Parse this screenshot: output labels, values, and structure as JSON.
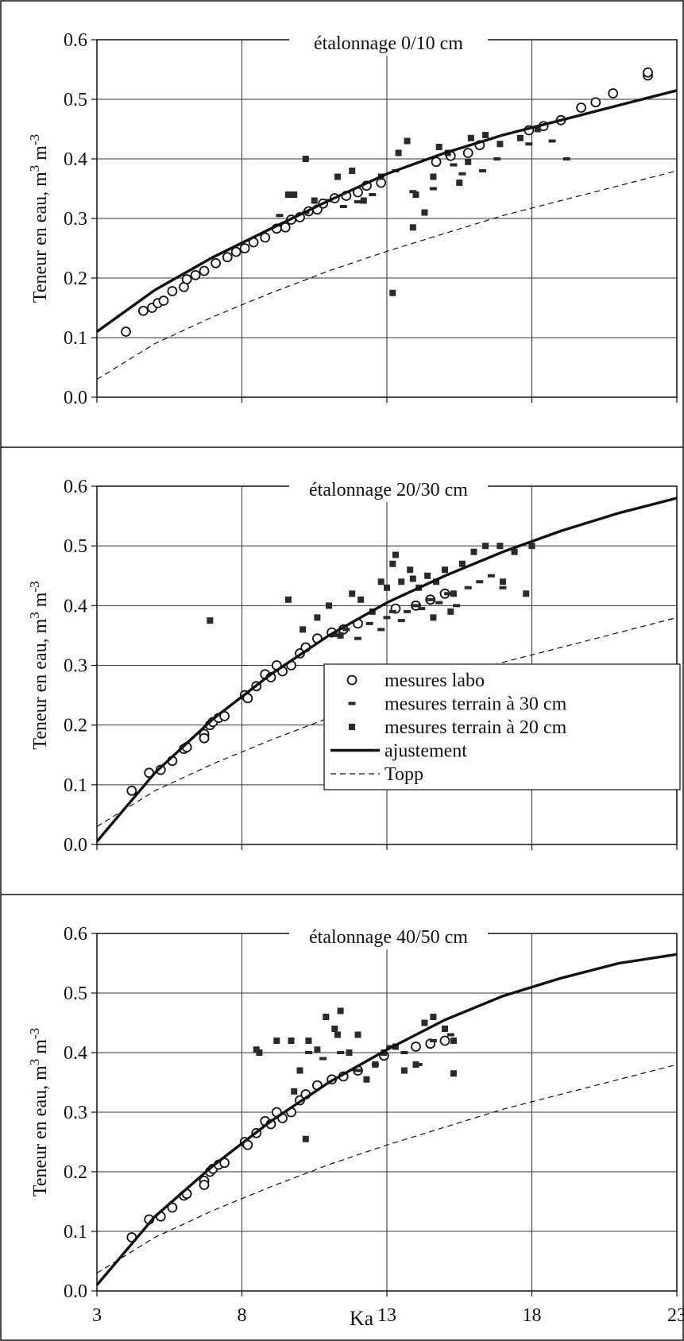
{
  "figure": {
    "xlabel": "Ka",
    "ylabel_main": "Teneur en eau, m",
    "ylabel_sup1": "3",
    "ylabel_mid": " m",
    "ylabel_sup2": "-3",
    "x_ticks": [
      "3",
      "8",
      "13",
      "18",
      "23"
    ],
    "y_ticks": [
      "0.0",
      "0.1",
      "0.2",
      "0.3",
      "0.4",
      "0.5",
      "0.6"
    ],
    "colors": {
      "ink": "#111111",
      "grid": "#333333",
      "lab_fill": "#ffffff",
      "field": "#2a2a2a"
    }
  },
  "legend": {
    "placement": "inside-lower-right of middle panel",
    "entries": [
      {
        "label": "mesures labo",
        "marker": "open-circle"
      },
      {
        "label": "mesures terrain à 30 cm",
        "marker": "small-dash"
      },
      {
        "label": "mesures terrain à 20 cm",
        "marker": "filled-square"
      },
      {
        "label": "ajustement",
        "marker": "thick-line"
      },
      {
        "label": "Topp",
        "marker": "dashed-line"
      }
    ]
  },
  "chart_data": [
    {
      "type": "scatter",
      "title": "étalonnage 0/10 cm",
      "xlim": [
        3,
        23
      ],
      "ylim": [
        0,
        0.6
      ],
      "grid": true,
      "series": [
        {
          "name": "mesures labo",
          "marker": "open-circle",
          "x": [
            4.0,
            4.6,
            4.9,
            5.1,
            5.3,
            5.6,
            6.0,
            6.1,
            6.4,
            6.7,
            7.1,
            7.5,
            7.8,
            8.1,
            8.4,
            8.8,
            9.2,
            9.5,
            9.7,
            10.0,
            10.3,
            10.6,
            10.8,
            11.2,
            11.6,
            12.0,
            12.3,
            12.8,
            14.7,
            15.2,
            15.8,
            16.2,
            17.9,
            18.4,
            19.0,
            19.7,
            20.2,
            20.8,
            22.0,
            22.0
          ],
          "y": [
            0.11,
            0.145,
            0.15,
            0.158,
            0.162,
            0.178,
            0.185,
            0.198,
            0.205,
            0.212,
            0.225,
            0.235,
            0.244,
            0.25,
            0.26,
            0.268,
            0.283,
            0.285,
            0.298,
            0.302,
            0.312,
            0.315,
            0.325,
            0.334,
            0.338,
            0.344,
            0.355,
            0.36,
            0.395,
            0.405,
            0.41,
            0.423,
            0.448,
            0.455,
            0.465,
            0.486,
            0.495,
            0.51,
            0.54,
            0.545
          ]
        },
        {
          "name": "mesures terrain à 30 cm",
          "marker": "small-dash",
          "x": [
            9.3,
            10.2,
            11.0,
            11.5,
            12.0,
            12.5,
            13.3,
            13.9,
            14.6,
            15.3,
            15.6,
            16.3,
            16.8,
            17.9,
            18.7,
            19.2
          ],
          "y": [
            0.305,
            0.31,
            0.33,
            0.32,
            0.328,
            0.34,
            0.38,
            0.345,
            0.35,
            0.39,
            0.375,
            0.38,
            0.4,
            0.425,
            0.43,
            0.4
          ]
        },
        {
          "name": "mesures terrain à 20 cm",
          "marker": "filled-square",
          "x": [
            9.6,
            9.8,
            10.2,
            10.5,
            11.3,
            11.8,
            12.2,
            12.8,
            13.4,
            13.7,
            14.0,
            14.3,
            14.8,
            15.1,
            15.5,
            15.9,
            16.4,
            16.9,
            17.6,
            18.2,
            13.2,
            13.9,
            14.6,
            15.8
          ],
          "y": [
            0.34,
            0.34,
            0.4,
            0.33,
            0.37,
            0.38,
            0.33,
            0.37,
            0.41,
            0.43,
            0.34,
            0.31,
            0.42,
            0.41,
            0.36,
            0.435,
            0.44,
            0.425,
            0.435,
            0.45,
            0.175,
            0.285,
            0.37,
            0.395
          ]
        },
        {
          "name": "ajustement",
          "marker": "thick-line",
          "x": [
            3,
            5,
            7,
            9,
            11,
            13,
            15,
            17,
            19,
            21,
            23
          ],
          "y": [
            0.11,
            0.18,
            0.235,
            0.283,
            0.33,
            0.375,
            0.41,
            0.44,
            0.465,
            0.49,
            0.515
          ]
        },
        {
          "name": "Topp",
          "marker": "dashed-line",
          "x": [
            3,
            5,
            7,
            9,
            11,
            13,
            15,
            17,
            19,
            21,
            23
          ],
          "y": [
            0.03,
            0.09,
            0.135,
            0.175,
            0.212,
            0.245,
            0.275,
            0.305,
            0.33,
            0.355,
            0.38
          ]
        }
      ]
    },
    {
      "type": "scatter",
      "title": "étalonnage 20/30 cm",
      "xlim": [
        3,
        23
      ],
      "ylim": [
        0,
        0.6
      ],
      "grid": true,
      "series": [
        {
          "name": "mesures labo",
          "marker": "open-circle",
          "x": [
            4.2,
            4.8,
            5.2,
            5.6,
            6.0,
            6.1,
            6.7,
            6.7,
            6.9,
            7.0,
            7.2,
            7.4,
            8.1,
            8.2,
            8.5,
            8.8,
            9.0,
            9.2,
            9.4,
            9.7,
            10.0,
            10.2,
            10.6,
            11.1,
            11.5,
            12.0,
            13.3,
            14.0,
            14.5,
            15.0
          ],
          "y": [
            0.09,
            0.12,
            0.125,
            0.14,
            0.16,
            0.163,
            0.185,
            0.178,
            0.2,
            0.205,
            0.212,
            0.215,
            0.25,
            0.245,
            0.265,
            0.285,
            0.28,
            0.3,
            0.29,
            0.3,
            0.32,
            0.33,
            0.345,
            0.355,
            0.36,
            0.37,
            0.395,
            0.4,
            0.41,
            0.42
          ]
        },
        {
          "name": "mesures terrain à 30 cm",
          "marker": "small-dash",
          "x": [
            11.2,
            11.6,
            12.0,
            12.4,
            12.8,
            13.0,
            13.2,
            13.5,
            13.7,
            14.0,
            14.2,
            14.5,
            14.8,
            15.1,
            15.4,
            15.8,
            16.2,
            16.6,
            17.0
          ],
          "y": [
            0.35,
            0.36,
            0.345,
            0.37,
            0.36,
            0.38,
            0.39,
            0.375,
            0.39,
            0.4,
            0.395,
            0.41,
            0.405,
            0.42,
            0.4,
            0.43,
            0.44,
            0.45,
            0.43
          ]
        },
        {
          "name": "mesures terrain à 20 cm",
          "marker": "filled-square",
          "x": [
            6.9,
            9.6,
            10.1,
            10.6,
            11.0,
            11.4,
            11.8,
            12.1,
            12.5,
            12.8,
            13.0,
            13.2,
            13.5,
            13.8,
            14.1,
            14.4,
            14.7,
            15.0,
            15.3,
            15.6,
            16.0,
            16.4,
            16.9,
            17.4,
            17.8,
            18.0,
            12.9,
            13.3,
            13.9,
            14.6,
            15.2,
            17.0
          ],
          "y": [
            0.375,
            0.41,
            0.36,
            0.38,
            0.4,
            0.35,
            0.42,
            0.41,
            0.39,
            0.44,
            0.43,
            0.47,
            0.44,
            0.46,
            0.43,
            0.45,
            0.44,
            0.46,
            0.42,
            0.47,
            0.49,
            0.5,
            0.5,
            0.49,
            0.42,
            0.5,
            0.275,
            0.485,
            0.445,
            0.38,
            0.39,
            0.44
          ]
        },
        {
          "name": "ajustement",
          "marker": "thick-line",
          "x": [
            3,
            5,
            7,
            9,
            11,
            13,
            15,
            17,
            19,
            21,
            23
          ],
          "y": [
            0.005,
            0.12,
            0.21,
            0.285,
            0.35,
            0.405,
            0.45,
            0.49,
            0.525,
            0.555,
            0.58
          ]
        },
        {
          "name": "Topp",
          "marker": "dashed-line",
          "x": [
            3,
            5,
            7,
            9,
            11,
            13,
            15,
            17,
            19,
            21,
            23
          ],
          "y": [
            0.03,
            0.09,
            0.135,
            0.175,
            0.212,
            0.245,
            0.275,
            0.305,
            0.33,
            0.355,
            0.38
          ]
        }
      ]
    },
    {
      "type": "scatter",
      "title": "étalonnage 40/50 cm",
      "xlim": [
        3,
        23
      ],
      "ylim": [
        0,
        0.6
      ],
      "grid": true,
      "series": [
        {
          "name": "mesures labo",
          "marker": "open-circle",
          "x": [
            4.2,
            4.8,
            5.2,
            5.6,
            6.0,
            6.1,
            6.7,
            6.7,
            6.9,
            7.0,
            7.2,
            7.4,
            8.1,
            8.2,
            8.5,
            8.8,
            9.0,
            9.2,
            9.4,
            9.7,
            10.0,
            10.2,
            10.6,
            11.1,
            11.5,
            12.0,
            12.9,
            14.0,
            14.5,
            15.0
          ],
          "y": [
            0.09,
            0.12,
            0.125,
            0.14,
            0.16,
            0.163,
            0.185,
            0.178,
            0.2,
            0.205,
            0.212,
            0.215,
            0.25,
            0.245,
            0.265,
            0.285,
            0.28,
            0.3,
            0.29,
            0.3,
            0.32,
            0.33,
            0.345,
            0.355,
            0.36,
            0.37,
            0.395,
            0.41,
            0.415,
            0.42
          ]
        },
        {
          "name": "mesures terrain à 30 cm",
          "marker": "small-dash",
          "x": [
            10.3,
            10.8,
            11.4,
            12.0,
            12.6,
            13.1,
            13.6,
            14.1,
            14.6,
            15.2
          ],
          "y": [
            0.4,
            0.39,
            0.4,
            0.37,
            0.38,
            0.41,
            0.4,
            0.38,
            0.42,
            0.43
          ]
        },
        {
          "name": "mesures terrain à 20 cm",
          "marker": "filled-square",
          "x": [
            8.5,
            8.6,
            9.2,
            9.7,
            9.8,
            10.0,
            10.3,
            10.6,
            10.9,
            11.2,
            11.4,
            11.7,
            12.0,
            12.3,
            12.6,
            12.9,
            13.3,
            13.6,
            14.0,
            14.3,
            14.6,
            15.0,
            15.3,
            10.2,
            11.3,
            15.3
          ],
          "y": [
            0.405,
            0.4,
            0.42,
            0.42,
            0.335,
            0.37,
            0.42,
            0.405,
            0.46,
            0.44,
            0.47,
            0.4,
            0.43,
            0.355,
            0.38,
            0.4,
            0.41,
            0.37,
            0.38,
            0.45,
            0.46,
            0.44,
            0.42,
            0.255,
            0.43,
            0.365
          ]
        },
        {
          "name": "ajustement",
          "marker": "thick-line",
          "x": [
            3,
            5,
            7,
            9,
            11,
            13,
            15,
            17,
            19,
            21,
            23
          ],
          "y": [
            0.01,
            0.125,
            0.21,
            0.285,
            0.35,
            0.405,
            0.455,
            0.495,
            0.525,
            0.55,
            0.565
          ]
        },
        {
          "name": "Topp",
          "marker": "dashed-line",
          "x": [
            3,
            5,
            7,
            9,
            11,
            13,
            15,
            17,
            19,
            21,
            23
          ],
          "y": [
            0.03,
            0.09,
            0.135,
            0.175,
            0.212,
            0.245,
            0.275,
            0.305,
            0.33,
            0.355,
            0.38
          ]
        }
      ]
    }
  ]
}
